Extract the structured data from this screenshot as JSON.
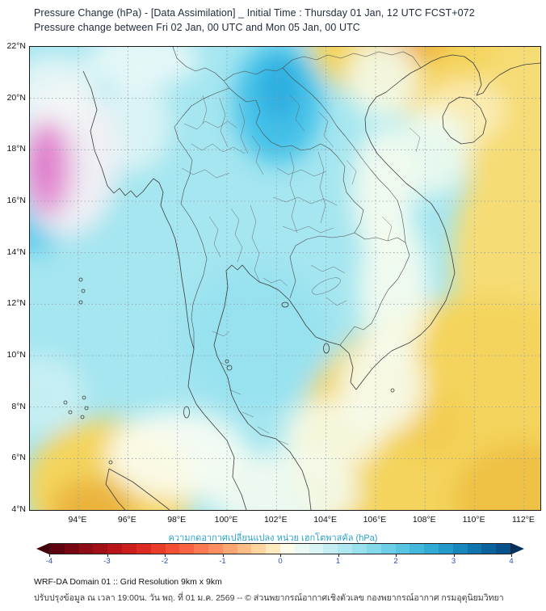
{
  "header": {
    "title_line1": "Pressure Change (hPa) - [Data Assimilation] _ Initial Time : Thursday 01 Jan, 12 UTC FCST+072",
    "title_line2": "Pressure change between Fri 02 Jan, 00 UTC and Mon 05 Jan, 00 UTC"
  },
  "map": {
    "lat_labels": [
      "22°N",
      "20°N",
      "18°N",
      "16°N",
      "14°N",
      "12°N",
      "10°N",
      "8°N",
      "6°N",
      "4°N"
    ],
    "lon_labels": [
      "94°E",
      "96°E",
      "98°E",
      "100°E",
      "102°E",
      "104°E",
      "106°E",
      "108°E",
      "110°E",
      "112°E"
    ]
  },
  "colorbar": {
    "label": "ความกดอากาศเปลี่ยนแปลง หน่วย เฮกโตพาสคัล (hPa)",
    "label_color": "#2ba0c6",
    "ticks": [
      "-4",
      "-3",
      "-2",
      "-1",
      "0",
      "1",
      "2",
      "3",
      "4"
    ],
    "tick_color": "#2b50b8",
    "under_color": "#450009",
    "over_color": "#05305f",
    "colors": [
      "#5f0310",
      "#760713",
      "#8d0c16",
      "#a30f17",
      "#b91419",
      "#cc1d1d",
      "#dc2a22",
      "#e93c2a",
      "#f24f35",
      "#f76343",
      "#fa7852",
      "#fc8e61",
      "#fda673",
      "#febd87",
      "#fed49f",
      "#ffe9bf",
      "#fdfbea",
      "#ebf9f5",
      "#d8f4f3",
      "#c4eef2",
      "#afe8f0",
      "#99e1ed",
      "#83d8ea",
      "#6dcfe7",
      "#57c4e2",
      "#43b8dc",
      "#31aad4",
      "#2399c9",
      "#1888bc",
      "#1075ae",
      "#0b639e",
      "#07518c"
    ]
  },
  "footer": {
    "line1": "WRF-DA Domain 01 :: Grid Resolution 9km x 9km",
    "line2": "ปรับปรุงข้อมูล ณ เวลา 19:00น. วัน พฤ. ที่ 01 ม.ค. 2569 -- © ส่วนพยากรณ์อากาศเชิงตัวเลข กองพยากรณ์อากาศ กรมอุตุนิยมวิทยา"
  },
  "chart_data": {
    "type": "heatmap",
    "title": "Pressure Change (hPa) - [Data Assimilation]",
    "forecast": "Initial Time Thursday 01 Jan, 12 UTC, FCST+072",
    "period": "Fri 02 Jan 00 UTC to Mon 05 Jan 00 UTC",
    "units": "hPa",
    "x_axis": {
      "label": "Longitude",
      "tick_values": [
        94,
        96,
        98,
        100,
        102,
        104,
        106,
        108,
        110,
        112
      ]
    },
    "y_axis": {
      "label": "Latitude",
      "tick_values": [
        22,
        20,
        18,
        16,
        14,
        12,
        10,
        8,
        6,
        4
      ]
    },
    "colorbar_range": [
      -4,
      4
    ],
    "colorbar_tick_step": 1,
    "field_features": [
      {
        "region": "Thailand / Indochina interior (map center)",
        "approx_value_hpa": 1,
        "appearance": "light cyan (weak positive change)"
      },
      {
        "region": "northern Laos ~101-103E, 19-21.5N",
        "approx_value_hpa": 2.5,
        "appearance": "blue local maximum"
      },
      {
        "region": "west edge ~92-94E, 15-17N",
        "approx_value_hpa": 2,
        "appearance": "bright cyan"
      },
      {
        "region": "northwest corner ~92-94E, 16.5-19.5N",
        "approx_value_hpa": -2,
        "appearance": "magenta-pink local minimum"
      },
      {
        "region": "northeast quadrant southern China ~104-112E, 19-22N",
        "approx_value_hpa": -1,
        "appearance": "yellow to orange"
      },
      {
        "region": "east / South China Sea ~106-112E, 4-14N",
        "approx_value_hpa": -0.8,
        "appearance": "yellow"
      },
      {
        "region": "southwest corner ~92-97E, 4-6.5N",
        "approx_value_hpa": -1,
        "appearance": "yellow-orange"
      },
      {
        "region": "transition band along Vietnam coast and bottom-center",
        "approx_value_hpa": 0,
        "appearance": "white"
      }
    ]
  }
}
